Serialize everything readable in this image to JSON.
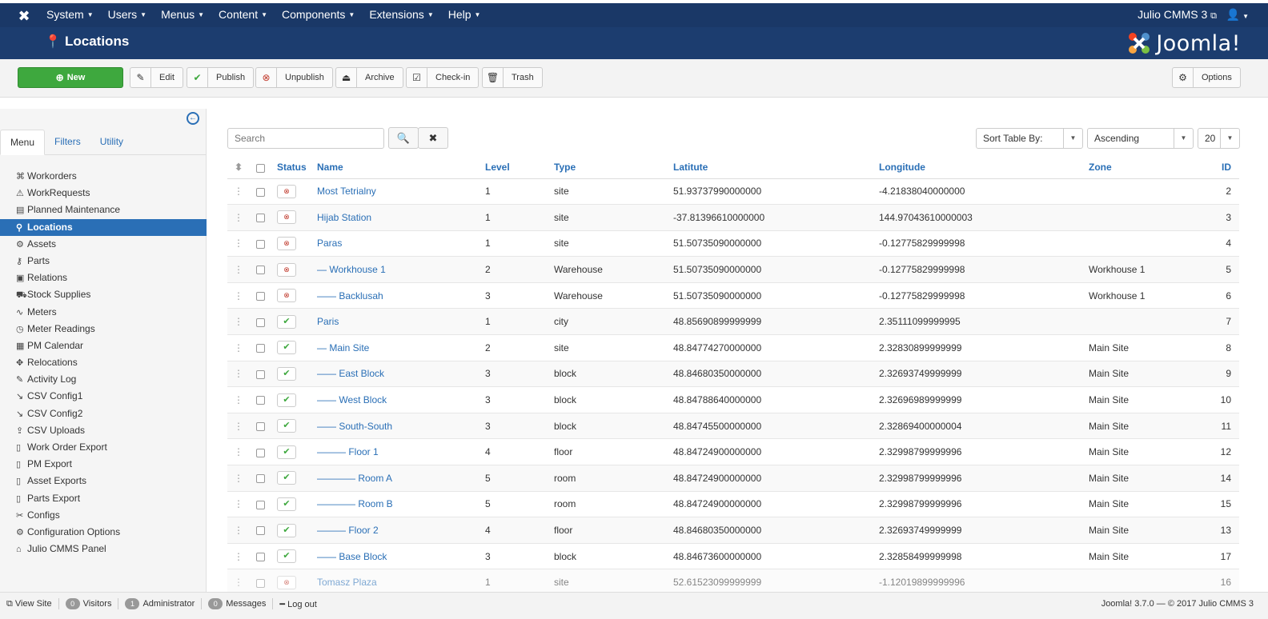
{
  "topnav": {
    "menus": [
      "System",
      "Users",
      "Menus",
      "Content",
      "Components",
      "Extensions",
      "Help"
    ],
    "site_link": "Julio CMMS 3"
  },
  "header": {
    "title": "Locations",
    "brand": "Joomla!"
  },
  "toolbar": {
    "new": "New",
    "edit": "Edit",
    "publish": "Publish",
    "unpublish": "Unpublish",
    "archive": "Archive",
    "checkin": "Check-in",
    "trash": "Trash",
    "options": "Options"
  },
  "sidebar": {
    "tabs": [
      "Menu",
      "Filters",
      "Utility"
    ],
    "items": [
      {
        "label": "Workorders",
        "icon": "⌘"
      },
      {
        "label": "WorkRequests",
        "icon": "⚠"
      },
      {
        "label": "Planned Maintenance",
        "icon": "▤"
      },
      {
        "label": "Locations",
        "icon": "⚲"
      },
      {
        "label": "Assets",
        "icon": "⚙"
      },
      {
        "label": "Parts",
        "icon": "⚷"
      },
      {
        "label": "Relations",
        "icon": "▣"
      },
      {
        "label": "Stock Supplies",
        "icon": "⛟"
      },
      {
        "label": "Meters",
        "icon": "∿"
      },
      {
        "label": "Meter Readings",
        "icon": "◷"
      },
      {
        "label": "PM Calendar",
        "icon": "▦"
      },
      {
        "label": "Relocations",
        "icon": "✥"
      },
      {
        "label": "Activity Log",
        "icon": "✎"
      },
      {
        "label": "CSV Config1",
        "icon": "↘"
      },
      {
        "label": "CSV Config2",
        "icon": "↘"
      },
      {
        "label": "CSV Uploads",
        "icon": "⇪"
      },
      {
        "label": "Work Order Export",
        "icon": "▯"
      },
      {
        "label": "PM Export",
        "icon": "▯"
      },
      {
        "label": "Asset Exports",
        "icon": "▯"
      },
      {
        "label": "Parts Export",
        "icon": "▯"
      },
      {
        "label": "Configs",
        "icon": "✂"
      },
      {
        "label": "Configuration Options",
        "icon": "⚙"
      },
      {
        "label": "Julio CMMS Panel",
        "icon": "⌂"
      }
    ]
  },
  "filters": {
    "search_placeholder": "Search",
    "sort_by": "Sort Table By:",
    "order": "Ascending",
    "limit": "20"
  },
  "table": {
    "headers": [
      "Status",
      "Name",
      "Level",
      "Type",
      "Latitute",
      "Longitude",
      "Zone",
      "ID"
    ],
    "rows": [
      {
        "status": "unpublished",
        "name": "Most Tetrialny",
        "level": "1",
        "type": "site",
        "lat": "51.93737990000000",
        "lon": "-4.21838040000000",
        "zone": "",
        "id": "2"
      },
      {
        "status": "unpublished",
        "name": "Hijab Station",
        "level": "1",
        "type": "site",
        "lat": "-37.81396610000000",
        "lon": "144.97043610000003",
        "zone": "",
        "id": "3"
      },
      {
        "status": "unpublished",
        "name": "Paras",
        "level": "1",
        "type": "site",
        "lat": "51.50735090000000",
        "lon": "-0.12775829999998",
        "zone": "",
        "id": "4"
      },
      {
        "status": "unpublished",
        "name": "— Workhouse 1",
        "level": "2",
        "type": "Warehouse",
        "lat": "51.50735090000000",
        "lon": "-0.12775829999998",
        "zone": "Workhouse 1",
        "id": "5"
      },
      {
        "status": "unpublished",
        "name": "—— Backlusah",
        "level": "3",
        "type": "Warehouse",
        "lat": "51.50735090000000",
        "lon": "-0.12775829999998",
        "zone": "Workhouse 1",
        "id": "6"
      },
      {
        "status": "published",
        "name": "Paris",
        "level": "1",
        "type": "city",
        "lat": "48.85690899999999",
        "lon": "2.35111099999995",
        "zone": "",
        "id": "7"
      },
      {
        "status": "published",
        "name": "— Main Site",
        "level": "2",
        "type": "site",
        "lat": "48.84774270000000",
        "lon": "2.32830899999999",
        "zone": "Main Site",
        "id": "8"
      },
      {
        "status": "published",
        "name": "—— East Block",
        "level": "3",
        "type": "block",
        "lat": "48.84680350000000",
        "lon": "2.32693749999999",
        "zone": "Main Site",
        "id": "9"
      },
      {
        "status": "published",
        "name": "—— West Block",
        "level": "3",
        "type": "block",
        "lat": "48.84788640000000",
        "lon": "2.32696989999999",
        "zone": "Main Site",
        "id": "10"
      },
      {
        "status": "published",
        "name": "—— South-South",
        "level": "3",
        "type": "block",
        "lat": "48.84745500000000",
        "lon": "2.32869400000004",
        "zone": "Main Site",
        "id": "11"
      },
      {
        "status": "published",
        "name": "——— Floor 1",
        "level": "4",
        "type": "floor",
        "lat": "48.84724900000000",
        "lon": "2.32998799999996",
        "zone": "Main Site",
        "id": "12"
      },
      {
        "status": "published",
        "name": "———— Room A",
        "level": "5",
        "type": "room",
        "lat": "48.84724900000000",
        "lon": "2.32998799999996",
        "zone": "Main Site",
        "id": "14"
      },
      {
        "status": "published",
        "name": "———— Room B",
        "level": "5",
        "type": "room",
        "lat": "48.84724900000000",
        "lon": "2.32998799999996",
        "zone": "Main Site",
        "id": "15"
      },
      {
        "status": "published",
        "name": "——— Floor 2",
        "level": "4",
        "type": "floor",
        "lat": "48.84680350000000",
        "lon": "2.32693749999999",
        "zone": "Main Site",
        "id": "13"
      },
      {
        "status": "published",
        "name": "—— Base Block",
        "level": "3",
        "type": "block",
        "lat": "48.84673600000000",
        "lon": "2.32858499999998",
        "zone": "Main Site",
        "id": "17"
      },
      {
        "status": "unpublished",
        "name": "Tomasz Plaza",
        "level": "1",
        "type": "site",
        "lat": "52.61523099999999",
        "lon": "-1.12019899999996",
        "zone": "",
        "id": "16"
      }
    ]
  },
  "footer": {
    "view_site": "View Site",
    "visitors_count": "0",
    "visitors": "Visitors",
    "admin_count": "1",
    "admin": "Administrator",
    "messages_count": "0",
    "messages": "Messages",
    "logout": "Log out",
    "copyright": "Joomla! 3.7.0 — © 2017 Julio CMMS 3"
  },
  "colors": {
    "nav": "#1a3867",
    "header": "#1c3d6f",
    "accent": "#2a6fb6",
    "new_button": "#3ea83e",
    "unpublished": "#c0392b"
  }
}
